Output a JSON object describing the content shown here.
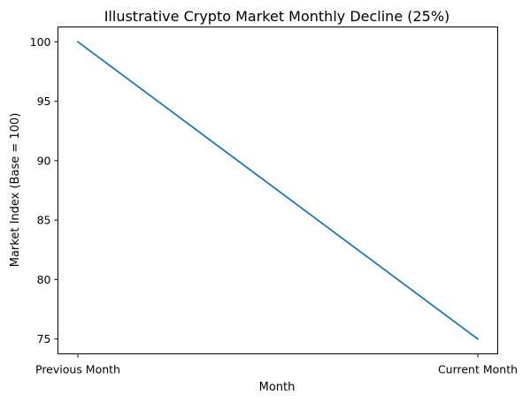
{
  "chart_data": {
    "type": "line",
    "title": "Illustrative Crypto Market Monthly Decline (25%)",
    "xlabel": "Month",
    "ylabel": "Market Index (Base = 100)",
    "categories": [
      "Previous Month",
      "Current Month"
    ],
    "series": [
      {
        "values": [
          100,
          75
        ],
        "color": "#1f77b4"
      }
    ],
    "ylim": [
      73.75,
      101.25
    ],
    "yticks": [
      75,
      80,
      85,
      90,
      95,
      100
    ],
    "grid": false
  }
}
